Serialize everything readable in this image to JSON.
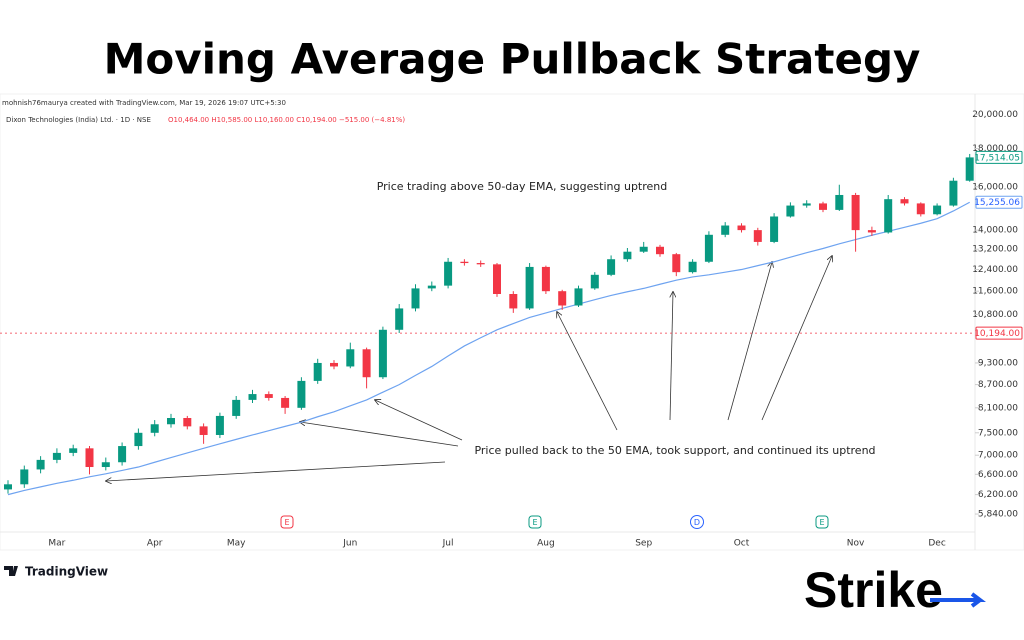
{
  "chart_data": {
    "type": "candlestick",
    "title": "Moving Average Pullback Strategy",
    "credit": "mohnish76maurya created with TradingView.com, Mar 19, 2026 19:07 UTC+5:30",
    "symbol": "Dixon Technologies (India) Ltd. · 1D · NSE",
    "ohlc_text": "O10,464.00  H10,585.00  L10,160.00  C10,194.00  −515.00 (−4.81%)",
    "annotations": [
      "Price trading above 50-day EMA, suggesting uptrend",
      "Price pulled back to the 50 EMA, took support, and continued its uptrend"
    ],
    "events": [
      "E",
      "E",
      "D",
      "E"
    ],
    "brand": "TradingView",
    "logo": "Strike",
    "log_scale": true,
    "grid": false,
    "up_color": "#089981",
    "down_color": "#f23645",
    "categories": [
      null,
      null,
      null,
      "Mar",
      null,
      null,
      null,
      null,
      null,
      "Apr",
      null,
      null,
      null,
      null,
      "May",
      null,
      null,
      null,
      null,
      null,
      null,
      "Jun",
      null,
      null,
      null,
      null,
      null,
      "Jul",
      null,
      null,
      null,
      null,
      null,
      "Aug",
      null,
      null,
      null,
      null,
      null,
      "Sep",
      null,
      null,
      null,
      null,
      null,
      "Oct",
      null,
      null,
      null,
      null,
      null,
      null,
      "Nov",
      null,
      null,
      null,
      null,
      "Dec",
      null,
      null
    ],
    "open": [
      6300,
      6400,
      6700,
      6900,
      7050,
      7150,
      6750,
      6850,
      7200,
      7500,
      7700,
      7850,
      7650,
      7450,
      7900,
      8300,
      8450,
      8350,
      8100,
      8800,
      9300,
      9200,
      9700,
      8900,
      10300,
      11000,
      11700,
      11800,
      12700,
      12650,
      12600,
      11500,
      11000,
      12500,
      11600,
      11100,
      11700,
      12200,
      12800,
      13100,
      13300,
      13000,
      12300,
      12700,
      13800,
      14200,
      14000,
      13500,
      14600,
      15100,
      15200,
      14900,
      15600,
      14000,
      13900,
      15400,
      15200,
      14700,
      15100,
      16300
    ],
    "high": [
      6480,
      6780,
      6980,
      7150,
      7230,
      7200,
      6950,
      7280,
      7600,
      7800,
      7950,
      7900,
      7720,
      7980,
      8400,
      8560,
      8520,
      8400,
      8900,
      9420,
      9380,
      9900,
      9750,
      10400,
      11150,
      11850,
      11950,
      12850,
      12800,
      12750,
      12650,
      11600,
      12650,
      12550,
      11650,
      11800,
      12300,
      12950,
      13250,
      13500,
      13380,
      13050,
      12800,
      13950,
      14350,
      14300,
      14100,
      14750,
      15250,
      15350,
      15280,
      16100,
      15700,
      14150,
      15600,
      15500,
      15250,
      15200,
      16450,
      17700
    ],
    "low": [
      6220,
      6330,
      6620,
      6830,
      6980,
      6600,
      6680,
      6780,
      7120,
      7420,
      7620,
      7580,
      7250,
      7380,
      7830,
      8220,
      8280,
      7950,
      8050,
      8720,
      9120,
      9150,
      8600,
      8850,
      10200,
      10900,
      11600,
      11700,
      12550,
      12500,
      11400,
      10850,
      10950,
      11500,
      10950,
      11050,
      11650,
      12150,
      12700,
      13050,
      12900,
      12150,
      12250,
      12650,
      13700,
      13900,
      13350,
      13450,
      14550,
      15000,
      14800,
      14850,
      13100,
      13750,
      13850,
      15100,
      14600,
      14650,
      15050,
      16250
    ],
    "close": [
      6400,
      6700,
      6900,
      7050,
      7150,
      6750,
      6850,
      7200,
      7500,
      7700,
      7850,
      7650,
      7450,
      7900,
      8300,
      8450,
      8350,
      8100,
      8800,
      9300,
      9200,
      9700,
      8900,
      10300,
      11000,
      11700,
      11800,
      12700,
      12650,
      12600,
      11500,
      11000,
      12500,
      11600,
      11100,
      11700,
      12200,
      12800,
      13100,
      13300,
      13000,
      12300,
      12700,
      13800,
      14200,
      14000,
      13500,
      14600,
      15100,
      15200,
      14900,
      15600,
      14000,
      13900,
      15400,
      15200,
      14700,
      15100,
      16300,
      17514.05
    ],
    "ema": {
      "color": "#6ea3f0",
      "values": [
        6200,
        6280,
        6350,
        6420,
        6480,
        6550,
        6610,
        6680,
        6750,
        6850,
        6950,
        7050,
        7150,
        7250,
        7350,
        7450,
        7550,
        7650,
        7750,
        7880,
        8000,
        8150,
        8300,
        8500,
        8700,
        8950,
        9200,
        9500,
        9800,
        10050,
        10300,
        10500,
        10700,
        10850,
        11000,
        11150,
        11300,
        11450,
        11580,
        11700,
        11850,
        12000,
        12120,
        12200,
        12300,
        12400,
        12550,
        12700,
        12880,
        13060,
        13230,
        13420,
        13600,
        13780,
        13950,
        14120,
        14300,
        14500,
        14850,
        15255.06
      ]
    },
    "last_price": {
      "value": 17514.05,
      "label": "17,514.05"
    },
    "ema_last": {
      "value": 15255.06,
      "label": "15,255.06"
    },
    "current_price": {
      "value": 10194,
      "label": "10,194.00"
    },
    "ylim": [
      5560,
      20900
    ],
    "yticks": [
      {
        "value": 20000,
        "label": "20,000.00"
      },
      {
        "value": 18000,
        "label": "18,000.00"
      },
      {
        "value": 16000,
        "label": "16,000.00"
      },
      {
        "value": 14000,
        "label": "14,000.00"
      },
      {
        "value": 13200,
        "label": "13,200.00"
      },
      {
        "value": 12400,
        "label": "12,400.00"
      },
      {
        "value": 11600,
        "label": "11,600.00"
      },
      {
        "value": 10800,
        "label": "10,800.00"
      },
      {
        "value": 9300,
        "label": "9,300.00"
      },
      {
        "value": 8700,
        "label": "8,700.00"
      },
      {
        "value": 8100,
        "label": "8,100.00"
      },
      {
        "value": 7500,
        "label": "7,500.00"
      },
      {
        "value": 7000,
        "label": "7,000.00"
      },
      {
        "value": 6600,
        "label": "6,600.00"
      },
      {
        "value": 6200,
        "label": "6,200.00"
      },
      {
        "value": 5840,
        "label": "5,840.00"
      }
    ]
  }
}
